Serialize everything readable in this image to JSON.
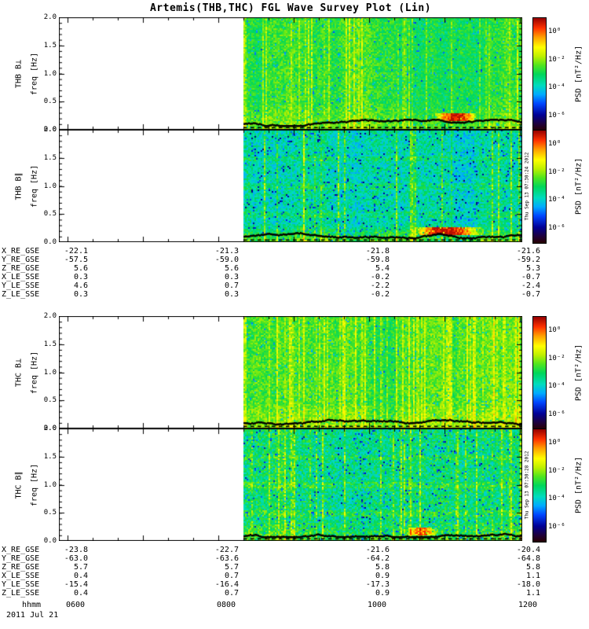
{
  "title": "Artemis(THB,THC) FGL Wave Survey Plot (Lin)",
  "yaxis": {
    "tick_labels": [
      "2.0",
      "1.5",
      "1.0",
      "0.5",
      "0.0"
    ]
  },
  "colorbar": {
    "label": "PSD [nT²/Hz]",
    "ticks": [
      "10⁰",
      "10⁻²",
      "10⁻⁴",
      "10⁻⁶"
    ]
  },
  "timestamps": [
    "Thu Sep 13 07:30:24 2012",
    "Thu Sep 13 07:30:28 2012"
  ],
  "xaxis": {
    "format_label": "hhmm",
    "ticks": [
      "0600",
      "0800",
      "1000",
      "1200"
    ],
    "date": "2011 Jul 21"
  },
  "chart_data": {
    "type": "heatmap",
    "title": "Artemis(THB,THC) FGL Wave Survey Plot (Lin)",
    "x_axis": {
      "label": "hhmm",
      "tick_labels": [
        "0600",
        "0800",
        "1000",
        "1200"
      ],
      "date": "2011 Jul 21",
      "data_start": "~0815",
      "data_end": "~1200",
      "note": "spectrogram data only present from ~0815 onward; earlier interval blank"
    },
    "panels": [
      {
        "name": "THB B⊥",
        "ylabel": "freq [Hz]",
        "ylim": [
          0,
          2
        ],
        "yticks": [
          0.0,
          0.5,
          1.0,
          1.5,
          2.0
        ],
        "colorbar_label": "PSD [nT²/Hz]",
        "colorbar_ticks_log10": [
          0,
          -2,
          -4,
          -6
        ],
        "summary": "broadband background ~1e-3 nT²/Hz (green) with intermittent yellow burst columns; enhanced power below ~0.5 Hz; brief intense red patch near 0.25 Hz around 1110-1130; black line trace near 0 Hz"
      },
      {
        "name": "THB B∥",
        "ylabel": "freq [Hz]",
        "ylim": [
          0,
          2
        ],
        "yticks": [
          0.0,
          0.5,
          1.0,
          1.5,
          2.0
        ],
        "colorbar_label": "PSD [nT²/Hz]",
        "colorbar_ticks_log10": [
          0,
          -2,
          -4,
          -6
        ],
        "summary": "weaker background ~1e-4 to 1e-5 (blue/cyan) with sporadic full-height yellow burst columns; strong narrowband orange/red enhancement below 0.3 Hz around 1030-1130; black line trace near 0 Hz"
      },
      {
        "name": "THC B⊥",
        "ylabel": "freq [Hz]",
        "ylim": [
          0,
          2
        ],
        "yticks": [
          0.0,
          0.5,
          1.0,
          1.5,
          2.0
        ],
        "colorbar_label": "PSD [nT²/Hz]",
        "colorbar_ticks_log10": [
          0,
          -2,
          -4,
          -6
        ],
        "summary": "green background ~1e-3 with many yellow burst columns, densest after 1000; enhanced power at low frequency; black line trace near 0 Hz"
      },
      {
        "name": "THC B∥",
        "ylabel": "freq [Hz]",
        "ylim": [
          0,
          2
        ],
        "yticks": [
          0.0,
          0.5,
          1.0,
          1.5,
          2.0
        ],
        "colorbar_label": "PSD [nT²/Hz]",
        "colorbar_ticks_log10": [
          0,
          -2,
          -4,
          -6
        ],
        "summary": "cyan/green mixed background ~1e-4 with yellow burst columns, blue speckle, enhanced low-frequency power; black line trace near 0 Hz"
      }
    ],
    "ephemeris_tables": [
      {
        "spacecraft": "THB",
        "time_columns": [
          "0600",
          "0800",
          "1000",
          "1200"
        ],
        "rows": [
          {
            "label": "X_RE_GSE",
            "values": [
              "-22.1",
              "-21.3",
              "-21.8",
              "-21.6"
            ]
          },
          {
            "label": "Y_RE_GSE",
            "values": [
              "-57.5",
              "-59.0",
              "-59.8",
              "-59.2"
            ]
          },
          {
            "label": "Z_RE_GSE",
            "values": [
              "5.6",
              "5.6",
              "5.4",
              "5.3"
            ]
          },
          {
            "label": "X_LE_SSE",
            "values": [
              "0.3",
              "0.3",
              "-0.2",
              "-0.7"
            ]
          },
          {
            "label": "Y_LE_SSE",
            "values": [
              "4.6",
              "0.7",
              "-2.2",
              "-2.4"
            ]
          },
          {
            "label": "Z_LE_SSE",
            "values": [
              "0.3",
              "0.3",
              "-0.2",
              "-0.7"
            ]
          }
        ]
      },
      {
        "spacecraft": "THC",
        "time_columns": [
          "0600",
          "0800",
          "1000",
          "1200"
        ],
        "rows": [
          {
            "label": "X_RE_GSE",
            "values": [
              "-23.8",
              "-22.7",
              "-21.6",
              "-20.4"
            ]
          },
          {
            "label": "Y_RE_GSE",
            "values": [
              "-63.0",
              "-63.6",
              "-64.2",
              "-64.8"
            ]
          },
          {
            "label": "Z_RE_GSE",
            "values": [
              "5.7",
              "5.7",
              "5.8",
              "5.8"
            ]
          },
          {
            "label": "X_LE_SSE",
            "values": [
              "0.4",
              "0.7",
              "0.9",
              "1.1"
            ]
          },
          {
            "label": "Y_LE_SSE",
            "values": [
              "-15.4",
              "-16.4",
              "-17.3",
              "-18.0"
            ]
          },
          {
            "label": "Z_LE_SSE",
            "values": [
              "0.4",
              "0.7",
              "0.9",
              "1.1"
            ]
          }
        ]
      }
    ]
  }
}
